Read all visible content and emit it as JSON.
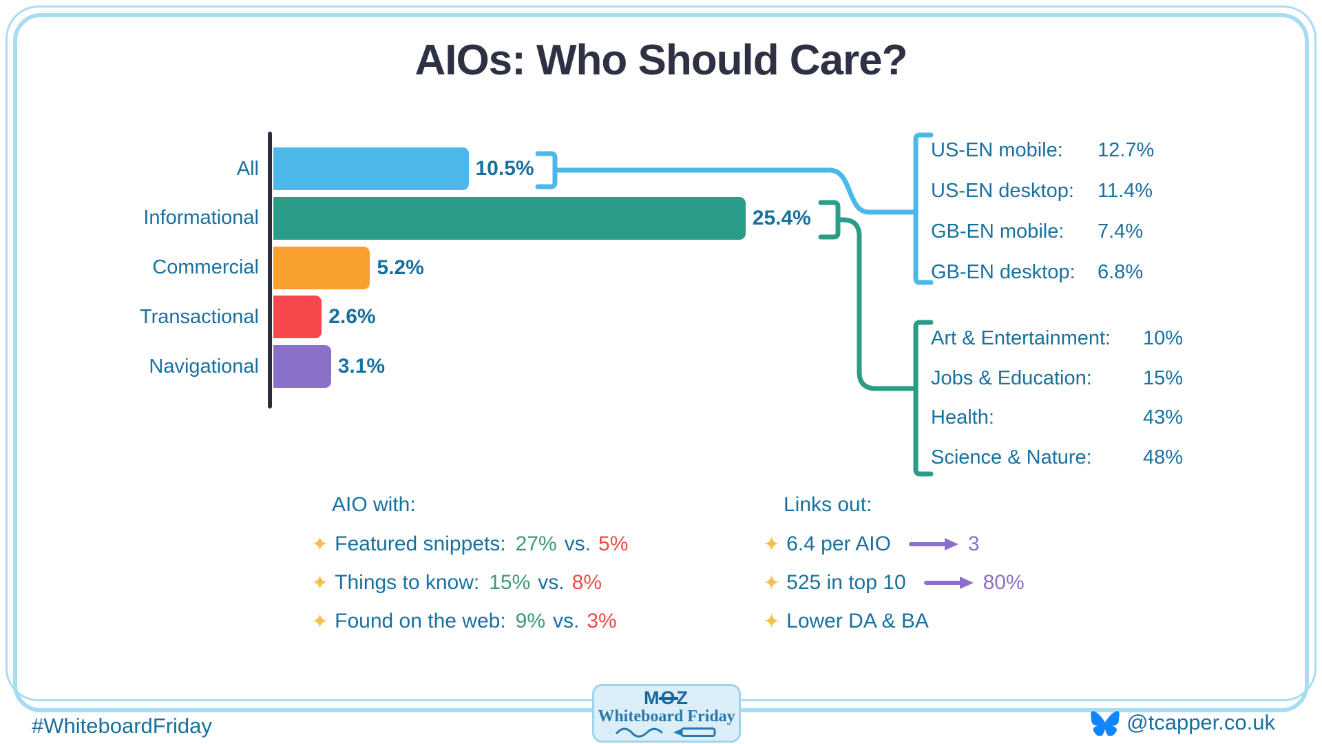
{
  "title": "AIOs: Who Should Care?",
  "chart_data": {
    "type": "bar",
    "orientation": "horizontal",
    "title": "AIOs: Who Should Care?",
    "categories": [
      "All",
      "Informational",
      "Commercial",
      "Transactional",
      "Navigational"
    ],
    "values": [
      10.5,
      25.4,
      5.2,
      2.6,
      3.1
    ],
    "value_labels": [
      "10.5%",
      "25.4%",
      "5.2%",
      "2.6%",
      "3.1%"
    ],
    "bar_colors": [
      "#4bb8e8",
      "#2a9c87",
      "#faa02e",
      "#f9474e",
      "#8a70c8"
    ],
    "xlim": [
      0,
      25.4
    ],
    "grid": false,
    "legend": "none"
  },
  "callouts": {
    "locales": {
      "connected_to": "All",
      "color": "#4bb8e8",
      "items": [
        {
          "label": "US-EN mobile:",
          "value": "12.7%"
        },
        {
          "label": "US-EN desktop:",
          "value": "11.4%"
        },
        {
          "label": "GB-EN mobile:",
          "value": "7.4%"
        },
        {
          "label": "GB-EN desktop:",
          "value": "6.8%"
        }
      ]
    },
    "verticals": {
      "connected_to": "Informational",
      "color": "#2a9c87",
      "items": [
        {
          "label": "Art & Entertainment:",
          "value": "10%"
        },
        {
          "label": "Jobs & Education:",
          "value": "15%"
        },
        {
          "label": "Health:",
          "value": "43%"
        },
        {
          "label": "Science & Nature:",
          "value": "48%"
        }
      ]
    }
  },
  "aio_with": {
    "heading": "AIO with:",
    "items": [
      {
        "label": "Featured snippets:",
        "value_a": "27%",
        "vs": "vs.",
        "value_b": "5%"
      },
      {
        "label": "Things to know:",
        "value_a": "15%",
        "vs": "vs.",
        "value_b": "8%"
      },
      {
        "label": "Found on the web:",
        "value_a": "9%",
        "vs": "vs.",
        "value_b": "3%"
      }
    ]
  },
  "links_out": {
    "heading": "Links out:",
    "items": [
      {
        "label": "6.4 per AIO",
        "arrow": true,
        "result": "3"
      },
      {
        "label": "525 in top 10",
        "arrow": true,
        "result": "80%"
      },
      {
        "label": "Lower DA & BA",
        "arrow": false,
        "result": ""
      }
    ]
  },
  "footer": {
    "hashtag": "#WhiteboardFriday",
    "handle": "@tcapper.co.uk",
    "badge": {
      "brand_m": "M",
      "brand_o": "O",
      "brand_z": "Z",
      "series": "Whiteboard Friday"
    }
  },
  "colors": {
    "border": "#a8dcf2",
    "title_text": "#2e3144",
    "body_text": "#17709f",
    "axis": "#2b2b3a",
    "positive_green": "#3d9b72",
    "negative_red": "#ee4b45",
    "purple_accent": "#8a70c8",
    "sparkle_gold": "#f4c04d",
    "bluesky_blue": "#1185fe"
  }
}
